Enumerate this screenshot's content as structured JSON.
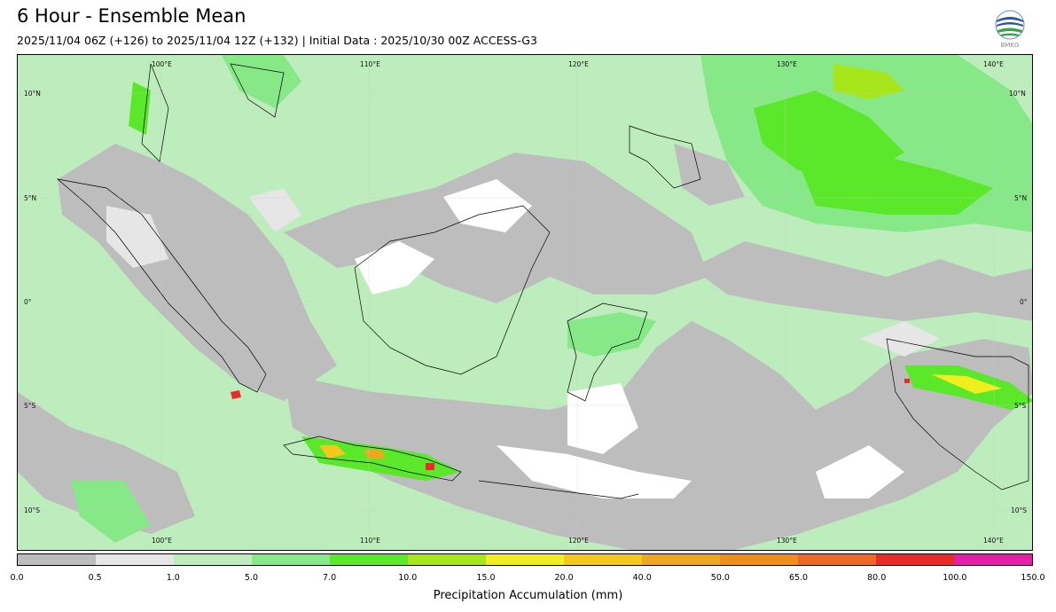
{
  "header": {
    "title": "6 Hour - Ensemble Mean",
    "subtitle": "2025/11/04 06Z (+126) to 2025/11/04 12Z (+132) | Initial Data : 2025/10/30 00Z ACCESS-G3",
    "logo_text": "BMKG"
  },
  "map": {
    "lon_labels": [
      "100°E",
      "110°E",
      "120°E",
      "130°E",
      "140°E"
    ],
    "lat_labels": [
      "10°N",
      "5°N",
      "0°",
      "5°S",
      "10°S"
    ],
    "background_color": "#bdedbd"
  },
  "colorbar": {
    "label": "Precipitation Accumulation (mm)",
    "ticks": [
      "0.0",
      "0.5",
      "1.0",
      "5.0",
      "7.0",
      "10.0",
      "15.0",
      "20.0",
      "40.0",
      "50.0",
      "65.0",
      "80.0",
      "100.0",
      "150.0"
    ],
    "colors": [
      "#bdbdbd",
      "#e6e6e6",
      "#bdedbd",
      "#86e886",
      "#5ce82a",
      "#a8e61c",
      "#f0ee1e",
      "#f2c81a",
      "#eea820",
      "#f08e1c",
      "#ee6a24",
      "#ec2a2a",
      "#e61eaa"
    ]
  }
}
